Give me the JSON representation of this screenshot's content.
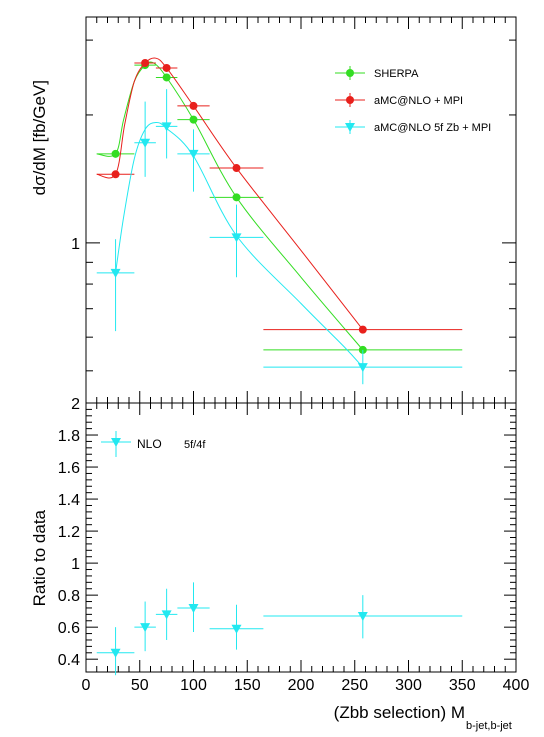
{
  "chart_data": [
    {
      "type": "scatter",
      "panel": "top",
      "ylabel": "dσ/dM [fb/GeV]",
      "y_scale": "log",
      "ylim": [
        0.42,
        3.4
      ],
      "xlim": [
        0,
        400
      ],
      "y_tick_labels": [
        {
          "value": 1,
          "label": "1"
        }
      ],
      "legend_position": "top-right",
      "series": [
        {
          "name": "SHERPA",
          "color": "#33dd22",
          "marker": "circle",
          "points": [
            {
              "x": 27.5,
              "x_lo": 10,
              "x_hi": 45,
              "y": 1.62
            },
            {
              "x": 55,
              "x_lo": 45,
              "x_hi": 65,
              "y": 2.62
            },
            {
              "x": 75,
              "x_lo": 65,
              "x_hi": 85,
              "y": 2.45
            },
            {
              "x": 100,
              "x_lo": 85,
              "x_hi": 115,
              "y": 1.95
            },
            {
              "x": 140,
              "x_lo": 115,
              "x_hi": 165,
              "y": 1.28
            },
            {
              "x": 257.5,
              "x_lo": 165,
              "x_hi": 350,
              "y": 0.56
            }
          ],
          "curve": [
            [
              10,
              1.62
            ],
            [
              27.5,
              1.62
            ],
            [
              35,
              1.95
            ],
            [
              45,
              2.4
            ],
            [
              55,
              2.62
            ],
            [
              63,
              2.65
            ],
            [
              75,
              2.45
            ],
            [
              100,
              1.95
            ],
            [
              140,
              1.28
            ],
            [
              200,
              0.83
            ],
            [
              257.5,
              0.56
            ]
          ]
        },
        {
          "name": "aMC@NLO + MPI",
          "color": "#e8201c",
          "marker": "circle",
          "points": [
            {
              "x": 27.5,
              "x_lo": 10,
              "x_hi": 45,
              "y": 1.45
            },
            {
              "x": 55,
              "x_lo": 45,
              "x_hi": 65,
              "y": 2.65
            },
            {
              "x": 75,
              "x_lo": 65,
              "x_hi": 85,
              "y": 2.58
            },
            {
              "x": 100,
              "x_lo": 85,
              "x_hi": 115,
              "y": 2.1
            },
            {
              "x": 140,
              "x_lo": 115,
              "x_hi": 165,
              "y": 1.5
            },
            {
              "x": 257.5,
              "x_lo": 165,
              "x_hi": 350,
              "y": 0.625
            }
          ],
          "curve": [
            [
              10,
              1.45
            ],
            [
              27.5,
              1.45
            ],
            [
              36,
              1.9
            ],
            [
              45,
              2.4
            ],
            [
              55,
              2.65
            ],
            [
              65,
              2.72
            ],
            [
              75,
              2.58
            ],
            [
              100,
              2.1
            ],
            [
              140,
              1.5
            ],
            [
              200,
              0.96
            ],
            [
              257.5,
              0.625
            ]
          ]
        },
        {
          "name": "aMC@NLO 5f Zb + MPI",
          "color": "#22e8f0",
          "marker": "triangle-down",
          "points": [
            {
              "x": 27.5,
              "x_lo": 10,
              "x_hi": 45,
              "y": 0.85,
              "y_lo": 0.62,
              "y_hi": 1.02
            },
            {
              "x": 55,
              "x_lo": 45,
              "x_hi": 65,
              "y": 1.72,
              "y_lo": 1.43,
              "y_hi": 2.15
            },
            {
              "x": 75,
              "x_lo": 65,
              "x_hi": 85,
              "y": 1.88,
              "y_lo": 1.58,
              "y_hi": 2.3
            },
            {
              "x": 100,
              "x_lo": 85,
              "x_hi": 115,
              "y": 1.62,
              "y_lo": 1.32,
              "y_hi": 1.85
            },
            {
              "x": 140,
              "x_lo": 115,
              "x_hi": 165,
              "y": 1.03,
              "y_lo": 0.83,
              "y_hi": 1.23
            },
            {
              "x": 257.5,
              "x_lo": 165,
              "x_hi": 350,
              "y": 0.51,
              "y_lo": 0.465,
              "y_hi": 0.56
            }
          ],
          "curve": [
            [
              27.5,
              0.85
            ],
            [
              35,
              1.15
            ],
            [
              45,
              1.58
            ],
            [
              55,
              1.85
            ],
            [
              65,
              1.92
            ],
            [
              75,
              1.86
            ],
            [
              100,
              1.6
            ],
            [
              140,
              1.04
            ],
            [
              200,
              0.72
            ],
            [
              240,
              0.57
            ],
            [
              257.5,
              0.51
            ]
          ]
        }
      ]
    },
    {
      "type": "scatter",
      "panel": "bottom",
      "ylabel": "Ratio to data",
      "xlabel": "(Zbb selection) M",
      "xlabel_sub": "b-jet,b-jet",
      "xlim": [
        0,
        400
      ],
      "ylim": [
        0.32,
        2.0
      ],
      "x_ticks": [
        0,
        50,
        100,
        150,
        200,
        250,
        300,
        350,
        400
      ],
      "x_tick_labels": [
        "0",
        "50",
        "100",
        "150",
        "200",
        "250",
        "300",
        "350",
        "400"
      ],
      "y_ticks": [
        0.4,
        0.6,
        0.8,
        1.0,
        1.2,
        1.4,
        1.6,
        1.8,
        2.0
      ],
      "y_tick_labels": [
        "0.4",
        "0.6",
        "0.8",
        "1",
        "1.2",
        "1.4",
        "1.6",
        "1.8",
        "2"
      ],
      "legend_position": "top-left",
      "series": [
        {
          "name": "NLO",
          "legend_note": "5f/4f",
          "color": "#22e8f0",
          "marker": "triangle-down",
          "points": [
            {
              "x": 27.5,
              "x_lo": 10,
              "x_hi": 45,
              "y": 0.44,
              "y_lo": 0.3,
              "y_hi": 0.6
            },
            {
              "x": 55,
              "x_lo": 45,
              "x_hi": 65,
              "y": 0.6,
              "y_lo": 0.45,
              "y_hi": 0.76
            },
            {
              "x": 75,
              "x_lo": 65,
              "x_hi": 85,
              "y": 0.68,
              "y_lo": 0.52,
              "y_hi": 0.84
            },
            {
              "x": 100,
              "x_lo": 85,
              "x_hi": 115,
              "y": 0.72,
              "y_lo": 0.57,
              "y_hi": 0.88
            },
            {
              "x": 140,
              "x_lo": 115,
              "x_hi": 165,
              "y": 0.59,
              "y_lo": 0.46,
              "y_hi": 0.74
            },
            {
              "x": 257.5,
              "x_lo": 165,
              "x_hi": 350,
              "y": 0.67,
              "y_lo": 0.53,
              "y_hi": 0.8
            }
          ]
        }
      ]
    }
  ]
}
